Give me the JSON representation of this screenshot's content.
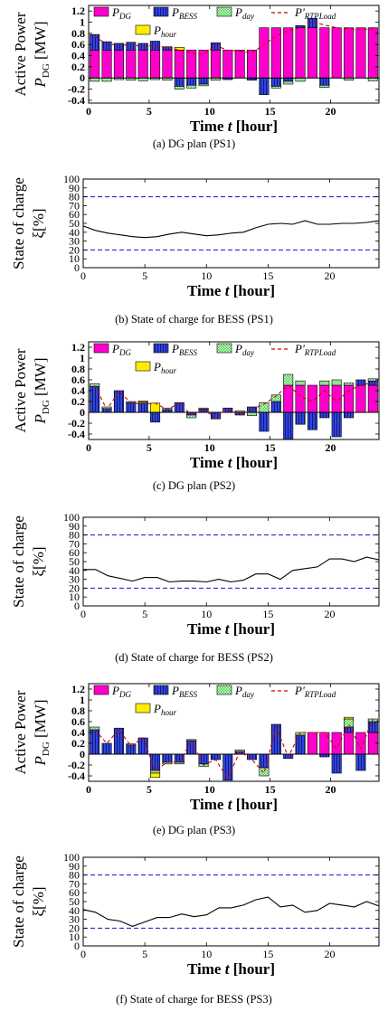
{
  "chart_data": [
    {
      "id": "a",
      "type": "bar",
      "caption": "(a)  DG plan (PS1)",
      "ylabel": [
        "Active Power",
        "P",
        "DG",
        " [MW]"
      ],
      "xlabel": "Time t [hour]",
      "xlim": [
        0,
        24
      ],
      "ylim": [
        -0.45,
        1.3
      ],
      "xticks": [
        0,
        5,
        10,
        15,
        20
      ],
      "yticks": [
        -0.4,
        -0.2,
        0,
        0.2,
        0.4,
        0.6,
        0.8,
        1,
        1.2
      ],
      "legend": [
        {
          "key": "pdg",
          "name": "P",
          "sub": "DG"
        },
        {
          "key": "pbess",
          "name": "P",
          "sub": "BESS"
        },
        {
          "key": "pday",
          "name": "P",
          "sub": "day"
        },
        {
          "key": "prtp",
          "name": "P'",
          "sub": "RTPLoad"
        },
        {
          "key": "phour",
          "name": "P",
          "sub": "hour"
        }
      ],
      "series": {
        "pdg": [
          0.5,
          0.5,
          0.5,
          0.5,
          0.5,
          0.5,
          0.5,
          0.5,
          0.5,
          0.5,
          0.5,
          0.5,
          0.5,
          0.5,
          0.9,
          0.9,
          0.9,
          0.9,
          0.9,
          0.9,
          0.9,
          0.9,
          0.9,
          0.9
        ],
        "pbess": [
          0.28,
          0.15,
          0.12,
          0.14,
          0.12,
          0.16,
          0.06,
          -0.15,
          -0.13,
          -0.11,
          0.13,
          -0.03,
          0.0,
          -0.04,
          -0.3,
          -0.15,
          -0.06,
          0.04,
          0.17,
          -0.13,
          0.0,
          0.0,
          0.0,
          0.0
        ],
        "pday": [
          -0.06,
          -0.06,
          -0.03,
          -0.04,
          -0.05,
          -0.03,
          -0.04,
          -0.05,
          -0.05,
          -0.03,
          -0.04,
          0.0,
          0.0,
          0.0,
          0.0,
          -0.03,
          -0.05,
          -0.06,
          0.0,
          -0.04,
          0.0,
          -0.04,
          0.0,
          -0.05
        ],
        "phour": [
          0.0,
          0.0,
          0.0,
          0.0,
          0.0,
          0.0,
          0.0,
          0.05,
          0.0,
          0.0,
          0.0,
          0.0,
          0.0,
          0.0,
          0.0,
          0.0,
          0.0,
          0.0,
          0.0,
          0.0,
          0.0,
          0.0,
          0.0,
          0.0
        ],
        "prtp": [
          0.75,
          0.6,
          0.6,
          0.58,
          0.58,
          0.57,
          0.55,
          0.5,
          0.45,
          0.42,
          0.58,
          0.5,
          0.48,
          0.45,
          0.6,
          0.75,
          0.85,
          0.9,
          1.0,
          0.95,
          0.9,
          0.88,
          0.87,
          0.88
        ]
      }
    },
    {
      "id": "b",
      "type": "line",
      "caption": "(b)  State of charge for BESS (PS1)",
      "ylabel": [
        "State of charge",
        "ξ[%]"
      ],
      "xlabel": "Time t [hour]",
      "xlim": [
        0,
        24
      ],
      "ylim": [
        0,
        100
      ],
      "xticks": [
        0,
        5,
        10,
        15,
        20
      ],
      "yticks": [
        0,
        10,
        20,
        30,
        40,
        50,
        60,
        70,
        80,
        90,
        100
      ],
      "limits": [
        80,
        20
      ],
      "x": [
        0,
        1,
        2,
        3,
        4,
        5,
        6,
        7,
        8,
        9,
        10,
        11,
        12,
        13,
        14,
        15,
        16,
        17,
        18,
        19,
        20,
        21,
        22,
        23,
        24
      ],
      "values": [
        47,
        42,
        39,
        37,
        35,
        34,
        35,
        38,
        40,
        38,
        36,
        37,
        39,
        40,
        45,
        49,
        50,
        49,
        53,
        49,
        49,
        50,
        50,
        51,
        53
      ]
    },
    {
      "id": "c",
      "type": "bar",
      "caption": "(c)  DG plan (PS2)",
      "ylabel": [
        "Active Power",
        "P",
        "DG",
        " [MW]"
      ],
      "xlabel": "Time t [hour]",
      "xlim": [
        0,
        24
      ],
      "ylim": [
        -0.5,
        1.3
      ],
      "xticks": [
        0,
        5,
        10,
        15,
        20
      ],
      "yticks": [
        -0.4,
        -0.2,
        0,
        0.2,
        0.4,
        0.6,
        0.8,
        1,
        1.2
      ],
      "legend": [
        {
          "key": "pdg",
          "name": "P",
          "sub": "DG"
        },
        {
          "key": "pbess",
          "name": "P",
          "sub": "BESS"
        },
        {
          "key": "pday",
          "name": "P",
          "sub": "day"
        },
        {
          "key": "prtp",
          "name": "P'",
          "sub": "RTPLoad"
        },
        {
          "key": "phour",
          "name": "P",
          "sub": "hour"
        }
      ],
      "series": {
        "pdg": [
          0,
          0,
          0,
          0,
          0,
          0,
          0,
          0,
          0,
          0,
          0,
          0,
          0,
          0,
          0,
          0,
          0.5,
          0.5,
          0.5,
          0.5,
          0.5,
          0.5,
          0.5,
          0.5
        ],
        "pbess": [
          0.48,
          0.07,
          0.4,
          0.18,
          0.17,
          -0.18,
          0.05,
          0.18,
          -0.05,
          0.06,
          -0.12,
          0.08,
          -0.05,
          0.1,
          -0.35,
          0.2,
          -0.5,
          -0.22,
          -0.32,
          -0.1,
          -0.45,
          -0.1,
          0.1,
          0.08
        ],
        "pday": [
          0.05,
          0.03,
          0.0,
          0.02,
          0.02,
          0.0,
          0.03,
          0.0,
          -0.05,
          0.02,
          0.0,
          0.0,
          0.03,
          -0.06,
          0.18,
          0.12,
          0.2,
          0.08,
          0.0,
          0.08,
          0.1,
          0.04,
          0.0,
          0.04
        ],
        "phour": [
          0.0,
          0.0,
          0.0,
          0.0,
          0.02,
          0.17,
          0.0,
          0.0,
          0.0,
          0.0,
          0.0,
          0.0,
          0.0,
          0.0,
          0.0,
          0.0,
          0.0,
          0.0,
          0.0,
          0.0,
          0.0,
          0.0,
          0.0,
          0.0
        ],
        "prtp": [
          0.5,
          0.05,
          0.38,
          0.18,
          0.15,
          0.17,
          0.05,
          0.17,
          -0.05,
          0.05,
          -0.1,
          0.05,
          -0.05,
          0.05,
          0.15,
          0.3,
          0.5,
          0.3,
          0.2,
          0.4,
          0.2,
          0.4,
          0.5,
          0.55
        ]
      }
    },
    {
      "id": "d",
      "type": "line",
      "caption": "(d)  State of charge for BESS (PS2)",
      "ylabel": [
        "State of charge",
        "ξ[%]"
      ],
      "xlabel": "Time t [hour]",
      "xlim": [
        0,
        24
      ],
      "ylim": [
        0,
        100
      ],
      "xticks": [
        0,
        5,
        10,
        15,
        20
      ],
      "yticks": [
        0,
        10,
        20,
        30,
        40,
        50,
        60,
        70,
        80,
        90,
        100
      ],
      "limits": [
        80,
        20
      ],
      "x": [
        0,
        1,
        2,
        3,
        4,
        5,
        6,
        7,
        8,
        9,
        10,
        11,
        12,
        13,
        14,
        15,
        16,
        17,
        18,
        19,
        20,
        21,
        22,
        23,
        24
      ],
      "values": [
        41,
        41,
        34,
        31,
        28,
        32,
        32,
        27,
        28,
        28,
        27,
        30,
        27,
        29,
        36,
        36,
        30,
        40,
        42,
        44,
        53,
        53,
        50,
        55,
        52
      ]
    },
    {
      "id": "e",
      "type": "bar",
      "caption": "(e)  DG plan (PS3)",
      "ylabel": [
        "Active Power",
        "P",
        "DG",
        " [MW]"
      ],
      "xlabel": "Time t [hour]",
      "xlim": [
        0,
        24
      ],
      "ylim": [
        -0.5,
        1.3
      ],
      "xticks": [
        0,
        5,
        10,
        15,
        20
      ],
      "yticks": [
        -0.4,
        -0.2,
        0,
        0.2,
        0.4,
        0.6,
        0.8,
        1,
        1.2
      ],
      "legend": [
        {
          "key": "pdg",
          "name": "P",
          "sub": "DG"
        },
        {
          "key": "pbess",
          "name": "P",
          "sub": "BESS"
        },
        {
          "key": "pday",
          "name": "P",
          "sub": "day"
        },
        {
          "key": "prtp",
          "name": "P'",
          "sub": "RTPLoad"
        },
        {
          "key": "phour",
          "name": "P",
          "sub": "hour"
        }
      ],
      "series": {
        "pdg": [
          0,
          0,
          0,
          0,
          0,
          0,
          0,
          0,
          0,
          0,
          0,
          0,
          0,
          0,
          0,
          0,
          0,
          0,
          0.4,
          0.4,
          0.4,
          0.4,
          0.4,
          0.4
        ],
        "pbess": [
          0.45,
          0.2,
          0.48,
          0.17,
          0.3,
          -0.3,
          -0.15,
          -0.15,
          0.25,
          -0.18,
          -0.1,
          -0.48,
          0.05,
          -0.1,
          -0.25,
          0.55,
          -0.08,
          0.35,
          0.0,
          -0.05,
          -0.35,
          0.1,
          -0.3,
          0.2
        ],
        "pday": [
          0.05,
          0.0,
          0.0,
          0.02,
          0.0,
          -0.05,
          -0.03,
          -0.03,
          0.02,
          -0.05,
          0.0,
          0.0,
          0.03,
          0.0,
          -0.15,
          0.0,
          0.0,
          0.05,
          0.0,
          0.0,
          0.0,
          0.15,
          0.0,
          0.05
        ],
        "phour": [
          0.0,
          0.0,
          0.0,
          0.0,
          0.0,
          -0.08,
          0.0,
          0.0,
          0.0,
          0.0,
          0.0,
          0.0,
          0.0,
          0.0,
          0.0,
          0.0,
          0.0,
          0.0,
          0.0,
          0.0,
          0.0,
          0.03,
          0.0,
          0.0
        ],
        "prtp": [
          0.45,
          0.2,
          0.45,
          0.15,
          0.3,
          -0.3,
          -0.15,
          -0.15,
          0.25,
          -0.2,
          -0.1,
          -0.45,
          0.05,
          -0.1,
          -0.35,
          0.5,
          -0.05,
          0.4,
          0.4,
          0.4,
          0.1,
          0.55,
          0.1,
          0.65
        ]
      }
    },
    {
      "id": "f",
      "type": "line",
      "caption": "(f)  State of charge for BESS (PS3)",
      "ylabel": [
        "State of charge",
        "ξ[%]"
      ],
      "xlabel": "Time t [hour]",
      "xlim": [
        0,
        24
      ],
      "ylim": [
        0,
        100
      ],
      "xticks": [
        0,
        5,
        10,
        15,
        20
      ],
      "yticks": [
        0,
        10,
        20,
        30,
        40,
        50,
        60,
        70,
        80,
        90,
        100
      ],
      "limits": [
        80,
        20
      ],
      "x": [
        0,
        1,
        2,
        3,
        4,
        5,
        6,
        7,
        8,
        9,
        10,
        11,
        12,
        13,
        14,
        15,
        16,
        17,
        18,
        19,
        20,
        21,
        22,
        23,
        24
      ],
      "values": [
        41,
        38,
        30,
        28,
        22,
        27,
        32,
        32,
        36,
        33,
        35,
        43,
        43,
        46,
        52,
        55,
        44,
        46,
        38,
        40,
        48,
        46,
        44,
        50,
        45
      ]
    }
  ],
  "colors": {
    "pdg": "#ff00cc",
    "pbess": "#3344dd",
    "pday": "#33cc33",
    "phour": "#ffee00",
    "prtp": "#cc0000",
    "limit": "#2233cc",
    "soc": "#000000"
  }
}
